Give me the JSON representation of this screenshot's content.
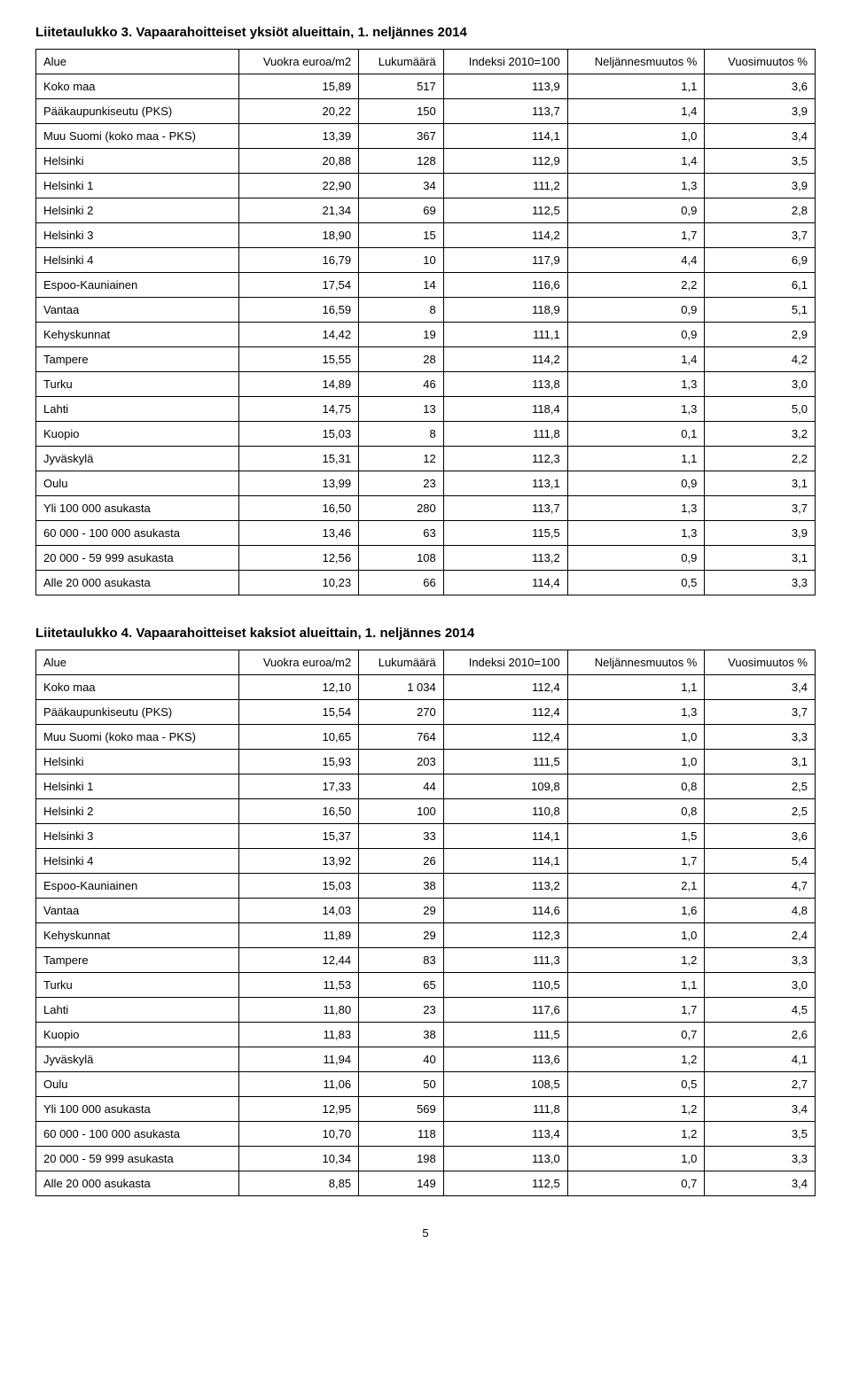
{
  "page_number": "5",
  "tables": [
    {
      "title": "Liitetaulukko 3. Vapaarahoitteiset yksiöt alueittain, 1. neljännes 2014",
      "columns": [
        "Alue",
        "Vuokra euroa/m2",
        "Lukumäärä",
        "Indeksi 2010=100",
        "Neljännesmuutos %",
        "Vuosimuutos %"
      ],
      "rows": [
        [
          "Koko maa",
          "15,89",
          "517",
          "113,9",
          "1,1",
          "3,6"
        ],
        [
          "Pääkaupunkiseutu (PKS)",
          "20,22",
          "150",
          "113,7",
          "1,4",
          "3,9"
        ],
        [
          "Muu Suomi (koko maa - PKS)",
          "13,39",
          "367",
          "114,1",
          "1,0",
          "3,4"
        ],
        [
          "Helsinki",
          "20,88",
          "128",
          "112,9",
          "1,4",
          "3,5"
        ],
        [
          "Helsinki 1",
          "22,90",
          "34",
          "111,2",
          "1,3",
          "3,9"
        ],
        [
          "Helsinki 2",
          "21,34",
          "69",
          "112,5",
          "0,9",
          "2,8"
        ],
        [
          "Helsinki 3",
          "18,90",
          "15",
          "114,2",
          "1,7",
          "3,7"
        ],
        [
          "Helsinki 4",
          "16,79",
          "10",
          "117,9",
          "4,4",
          "6,9"
        ],
        [
          "Espoo-Kauniainen",
          "17,54",
          "14",
          "116,6",
          "2,2",
          "6,1"
        ],
        [
          "Vantaa",
          "16,59",
          "8",
          "118,9",
          "0,9",
          "5,1"
        ],
        [
          "Kehyskunnat",
          "14,42",
          "19",
          "111,1",
          "0,9",
          "2,9"
        ],
        [
          "Tampere",
          "15,55",
          "28",
          "114,2",
          "1,4",
          "4,2"
        ],
        [
          "Turku",
          "14,89",
          "46",
          "113,8",
          "1,3",
          "3,0"
        ],
        [
          "Lahti",
          "14,75",
          "13",
          "118,4",
          "1,3",
          "5,0"
        ],
        [
          "Kuopio",
          "15,03",
          "8",
          "111,8",
          "0,1",
          "3,2"
        ],
        [
          "Jyväskylä",
          "15,31",
          "12",
          "112,3",
          "1,1",
          "2,2"
        ],
        [
          "Oulu",
          "13,99",
          "23",
          "113,1",
          "0,9",
          "3,1"
        ],
        [
          "Yli 100 000 asukasta",
          "16,50",
          "280",
          "113,7",
          "1,3",
          "3,7"
        ],
        [
          "60 000 - 100 000 asukasta",
          "13,46",
          "63",
          "115,5",
          "1,3",
          "3,9"
        ],
        [
          "20 000 - 59 999 asukasta",
          "12,56",
          "108",
          "113,2",
          "0,9",
          "3,1"
        ],
        [
          "Alle 20 000 asukasta",
          "10,23",
          "66",
          "114,4",
          "0,5",
          "3,3"
        ]
      ]
    },
    {
      "title": "Liitetaulukko 4. Vapaarahoitteiset kaksiot alueittain, 1. neljännes 2014",
      "columns": [
        "Alue",
        "Vuokra euroa/m2",
        "Lukumäärä",
        "Indeksi 2010=100",
        "Neljännesmuutos %",
        "Vuosimuutos %"
      ],
      "rows": [
        [
          "Koko maa",
          "12,10",
          "1 034",
          "112,4",
          "1,1",
          "3,4"
        ],
        [
          "Pääkaupunkiseutu (PKS)",
          "15,54",
          "270",
          "112,4",
          "1,3",
          "3,7"
        ],
        [
          "Muu Suomi (koko maa - PKS)",
          "10,65",
          "764",
          "112,4",
          "1,0",
          "3,3"
        ],
        [
          "Helsinki",
          "15,93",
          "203",
          "111,5",
          "1,0",
          "3,1"
        ],
        [
          "Helsinki 1",
          "17,33",
          "44",
          "109,8",
          "0,8",
          "2,5"
        ],
        [
          "Helsinki 2",
          "16,50",
          "100",
          "110,8",
          "0,8",
          "2,5"
        ],
        [
          "Helsinki 3",
          "15,37",
          "33",
          "114,1",
          "1,5",
          "3,6"
        ],
        [
          "Helsinki 4",
          "13,92",
          "26",
          "114,1",
          "1,7",
          "5,4"
        ],
        [
          "Espoo-Kauniainen",
          "15,03",
          "38",
          "113,2",
          "2,1",
          "4,7"
        ],
        [
          "Vantaa",
          "14,03",
          "29",
          "114,6",
          "1,6",
          "4,8"
        ],
        [
          "Kehyskunnat",
          "11,89",
          "29",
          "112,3",
          "1,0",
          "2,4"
        ],
        [
          "Tampere",
          "12,44",
          "83",
          "111,3",
          "1,2",
          "3,3"
        ],
        [
          "Turku",
          "11,53",
          "65",
          "110,5",
          "1,1",
          "3,0"
        ],
        [
          "Lahti",
          "11,80",
          "23",
          "117,6",
          "1,7",
          "4,5"
        ],
        [
          "Kuopio",
          "11,83",
          "38",
          "111,5",
          "0,7",
          "2,6"
        ],
        [
          "Jyväskylä",
          "11,94",
          "40",
          "113,6",
          "1,2",
          "4,1"
        ],
        [
          "Oulu",
          "11,06",
          "50",
          "108,5",
          "0,5",
          "2,7"
        ],
        [
          "Yli 100 000 asukasta",
          "12,95",
          "569",
          "111,8",
          "1,2",
          "3,4"
        ],
        [
          "60 000 - 100 000 asukasta",
          "10,70",
          "118",
          "113,4",
          "1,2",
          "3,5"
        ],
        [
          "20 000 - 59 999 asukasta",
          "10,34",
          "198",
          "113,0",
          "1,0",
          "3,3"
        ],
        [
          "Alle 20 000 asukasta",
          "8,85",
          "149",
          "112,5",
          "0,7",
          "3,4"
        ]
      ]
    }
  ]
}
